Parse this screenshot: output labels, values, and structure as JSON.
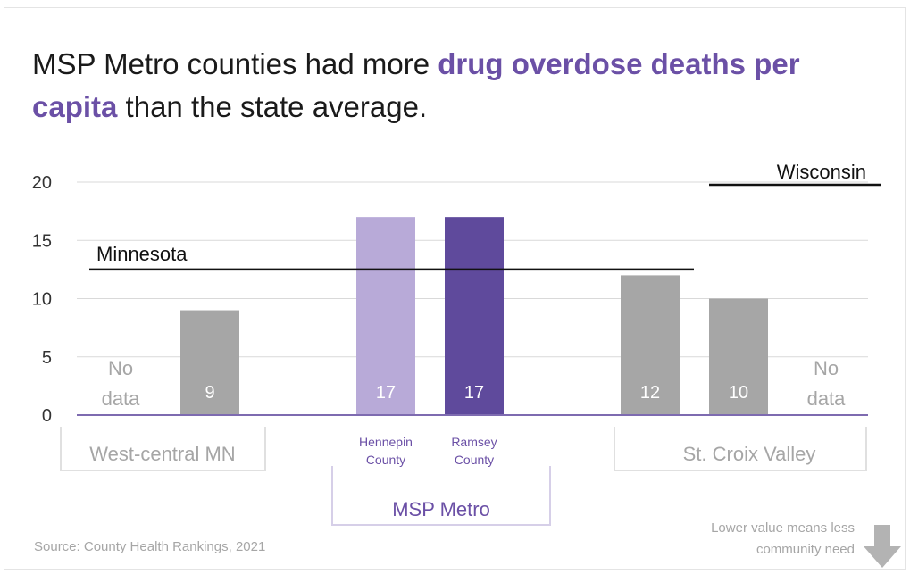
{
  "title": {
    "before": "MSP Metro counties had more ",
    "highlight": "drug overdose deaths per capita",
    "after": " than the state average."
  },
  "source": "Source: County Health Rankings, 2021",
  "note": {
    "line1": "Lower value means less",
    "line2": "community need"
  },
  "chart_data": {
    "type": "bar",
    "ylim": [
      0,
      20
    ],
    "yticks": [
      "0",
      "5",
      "10",
      "15",
      "20"
    ],
    "grid": true,
    "bars": [
      {
        "value": null,
        "label": "No data",
        "label_lines": [
          "No",
          "data"
        ],
        "color": "#a6a6a6"
      },
      {
        "value": 9,
        "label": "9",
        "color": "#a6a6a6"
      },
      {
        "value": 17,
        "label": "17",
        "category": "Hennepin County",
        "category_lines": [
          "Hennepin",
          "County"
        ],
        "color": "#b8aad8"
      },
      {
        "value": 17,
        "label": "17",
        "category": "Ramsey County",
        "category_lines": [
          "Ramsey",
          "County"
        ],
        "color": "#5f4a9c"
      },
      {
        "value": 12,
        "label": "12",
        "color": "#a6a6a6"
      },
      {
        "value": 10,
        "label": "10",
        "color": "#a6a6a6"
      },
      {
        "value": null,
        "label": "No data",
        "label_lines": [
          "No",
          "data"
        ],
        "color": "#a6a6a6"
      }
    ],
    "groups": [
      {
        "name": "West-central MN",
        "color": "#a6a6a6"
      },
      {
        "name": "MSP Metro",
        "color": "#6b50a6"
      },
      {
        "name": "St. Croix Valley",
        "color": "#a6a6a6"
      }
    ],
    "reference_lines": [
      {
        "name": "Minnesota",
        "value": 12.5
      },
      {
        "name": "Wisconsin",
        "value": 20
      }
    ],
    "colors": {
      "accent": "#6b50a6",
      "gray_bar": "#a6a6a6",
      "axis": "#7e6bb0",
      "grid": "#d9d9d9"
    }
  }
}
